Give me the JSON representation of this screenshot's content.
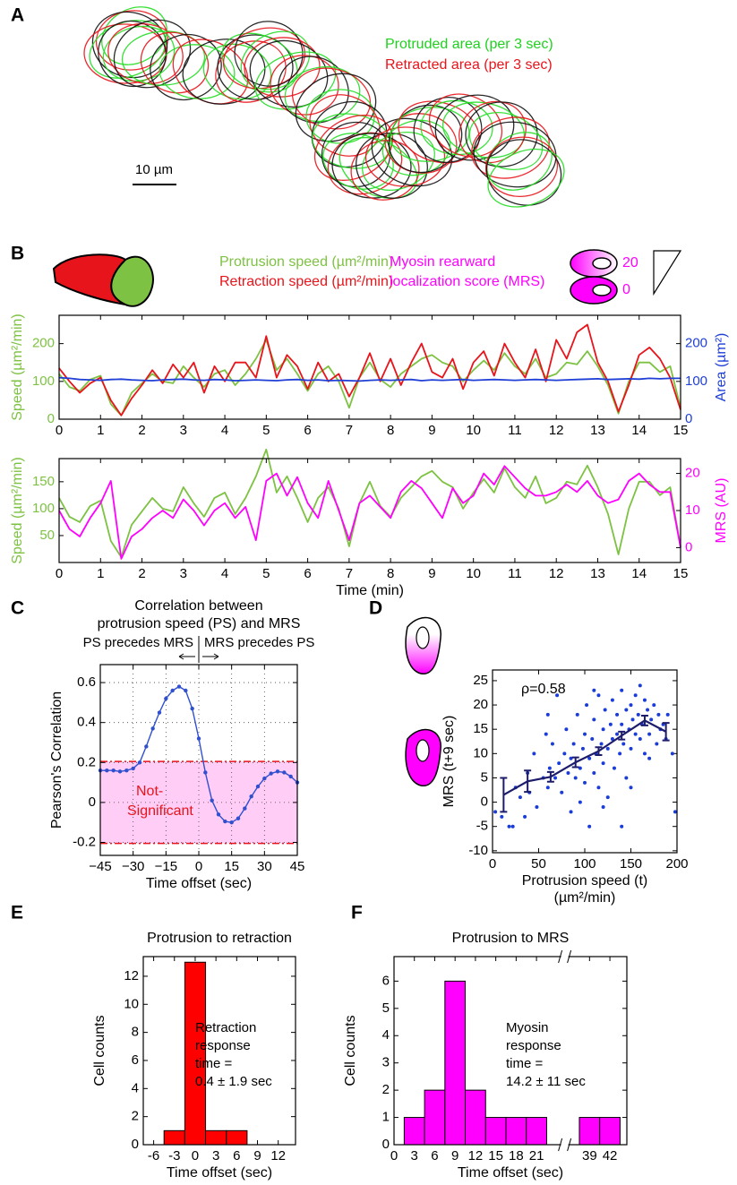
{
  "figure": {
    "panel_labels": [
      "A",
      "B",
      "C",
      "D",
      "E",
      "F"
    ],
    "panel_a": {
      "protruded": "Protruded area (per 3 sec)",
      "retracted": "Retracted area (per 3 sec)",
      "scale_bar": "10 µm"
    },
    "panel_b": {
      "protrusion": "Protrusion speed (µm²/min)",
      "retraction": "Retraction speed (µm²/min)",
      "myosin": [
        "Myosin rearward",
        "localization score (MRS)"
      ],
      "scale_high": "20",
      "scale_low": "0"
    }
  },
  "chart_data": [
    {
      "type": "line",
      "ylabel": "Speed (µm²/min)",
      "y2label": "Area (µm²)",
      "colored_axes": true,
      "x": [
        0,
        0.25,
        0.5,
        0.75,
        1,
        1.25,
        1.5,
        1.75,
        2,
        2.25,
        2.5,
        2.75,
        3,
        3.25,
        3.5,
        3.75,
        4,
        4.25,
        4.5,
        4.75,
        5,
        5.25,
        5.5,
        5.75,
        6,
        6.25,
        6.5,
        6.75,
        7,
        7.25,
        7.5,
        7.75,
        8,
        8.25,
        8.5,
        8.75,
        9,
        9.25,
        9.5,
        9.75,
        10,
        10.25,
        10.5,
        10.75,
        11,
        11.25,
        11.5,
        11.75,
        12,
        12.25,
        12.5,
        12.75,
        13,
        13.25,
        13.5,
        13.75,
        14,
        14.25,
        14.5,
        14.75,
        15
      ],
      "xlim": [
        0,
        15
      ],
      "xticks": [
        0,
        1,
        2,
        3,
        4,
        5,
        6,
        7,
        8,
        9,
        10,
        11,
        12,
        13,
        14,
        15
      ],
      "ylim": [
        0,
        275
      ],
      "yticks": [
        0,
        100,
        200
      ],
      "y2lim": [
        0,
        275
      ],
      "y2ticks": [
        0,
        100,
        200
      ],
      "series": [
        {
          "color": "#7dc242",
          "values": [
            120,
            85,
            75,
            105,
            115,
            40,
            10,
            70,
            95,
            120,
            100,
            95,
            140,
            110,
            85,
            120,
            130,
            90,
            120,
            160,
            210,
            130,
            160,
            120,
            75,
            120,
            140,
            100,
            30,
            110,
            150,
            105,
            85,
            120,
            140,
            160,
            170,
            150,
            140,
            100,
            130,
            155,
            130,
            175,
            140,
            120,
            160,
            110,
            120,
            150,
            145,
            180,
            140,
            90,
            15,
            100,
            150,
            150,
            125,
            140,
            30
          ]
        },
        {
          "color": "#e8141b",
          "values": [
            135,
            100,
            70,
            95,
            110,
            50,
            10,
            55,
            90,
            130,
            95,
            145,
            110,
            150,
            70,
            140,
            100,
            150,
            150,
            110,
            220,
            110,
            170,
            140,
            80,
            150,
            100,
            120,
            60,
            110,
            175,
            100,
            160,
            90,
            150,
            200,
            125,
            110,
            160,
            80,
            150,
            180,
            115,
            200,
            150,
            110,
            185,
            100,
            210,
            160,
            230,
            250,
            150,
            100,
            20,
            90,
            170,
            190,
            160,
            110,
            25
          ]
        },
        {
          "color": "#1f3fd6",
          "axis": "y2",
          "values": [
            110,
            108,
            105,
            104,
            103,
            105,
            106,
            104,
            103,
            102,
            104,
            105,
            106,
            104,
            103,
            105,
            104,
            102,
            103,
            104,
            103,
            102,
            104,
            105,
            103,
            104,
            102,
            103,
            102,
            101,
            103,
            104,
            103,
            104,
            105,
            102,
            104,
            103,
            104,
            105,
            103,
            104,
            105,
            104,
            103,
            104,
            105,
            104,
            103,
            104,
            105,
            106,
            107,
            105,
            106,
            107,
            106,
            108,
            107,
            108,
            108
          ]
        }
      ]
    },
    {
      "type": "line",
      "xlabel": "Time (min)",
      "ylabel": "Speed (µm²/min)",
      "y2label": "MRS (AU)",
      "colored_axes": true,
      "x": [
        0,
        0.25,
        0.5,
        0.75,
        1,
        1.25,
        1.5,
        1.75,
        2,
        2.25,
        2.5,
        2.75,
        3,
        3.25,
        3.5,
        3.75,
        4,
        4.25,
        4.5,
        4.75,
        5,
        5.25,
        5.5,
        5.75,
        6,
        6.25,
        6.5,
        6.75,
        7,
        7.25,
        7.5,
        7.75,
        8,
        8.25,
        8.5,
        8.75,
        9,
        9.25,
        9.5,
        9.75,
        10,
        10.25,
        10.5,
        10.75,
        11,
        11.25,
        11.5,
        11.75,
        12,
        12.25,
        12.5,
        12.75,
        13,
        13.25,
        13.5,
        13.75,
        14,
        14.25,
        14.5,
        14.75,
        15
      ],
      "xlim": [
        0,
        15
      ],
      "xticks": [
        0,
        1,
        2,
        3,
        4,
        5,
        6,
        7,
        8,
        9,
        10,
        11,
        12,
        13,
        14,
        15
      ],
      "ylim": [
        0,
        193
      ],
      "yticks": [
        50,
        100,
        150
      ],
      "y2lim": [
        -4,
        24
      ],
      "y2ticks": [
        0,
        10,
        20
      ],
      "series": [
        {
          "color": "#7dc242",
          "values": [
            120,
            85,
            75,
            105,
            115,
            40,
            10,
            70,
            95,
            120,
            100,
            95,
            140,
            110,
            85,
            120,
            130,
            90,
            120,
            160,
            210,
            130,
            160,
            120,
            75,
            120,
            140,
            100,
            30,
            110,
            150,
            105,
            85,
            120,
            140,
            160,
            170,
            150,
            140,
            100,
            130,
            155,
            130,
            175,
            140,
            120,
            160,
            110,
            120,
            150,
            145,
            180,
            140,
            90,
            15,
            100,
            150,
            150,
            125,
            140,
            30
          ]
        },
        {
          "color": "#ff00ff",
          "axis": "y2",
          "values": [
            10,
            5,
            3,
            8,
            12,
            18,
            -3,
            3,
            5,
            8,
            10,
            8,
            13,
            10,
            6,
            10,
            12,
            8,
            11,
            2,
            18,
            20,
            14,
            19,
            12,
            8,
            18,
            10,
            2,
            12,
            14,
            11,
            8,
            15,
            18,
            16,
            12,
            8,
            16,
            12,
            14,
            20,
            17,
            22,
            19,
            16,
            14,
            14,
            15,
            17,
            15,
            18,
            14,
            12,
            13,
            18,
            20,
            17,
            15,
            15,
            0
          ]
        }
      ]
    },
    {
      "type": "line",
      "title": [
        "Correlation between",
        "protrusion speed (PS) and MRS"
      ],
      "left_note": "PS precedes MRS",
      "right_note": "MRS precedes PS",
      "band_label": [
        "Not-",
        "Significant"
      ],
      "xlabel": "Time offset (sec)",
      "ylabel": "Pearson's Correlation",
      "grid": true,
      "markers": true,
      "band": [
        -0.205,
        0.205
      ],
      "band_color": "#ffcdf6",
      "band_edge_color": "#e8141b",
      "x": [
        -45,
        -42,
        -39,
        -36,
        -33,
        -30,
        -27,
        -24,
        -21,
        -18,
        -15,
        -12,
        -9,
        -6,
        -3,
        0,
        3,
        6,
        9,
        12,
        15,
        18,
        21,
        24,
        27,
        30,
        33,
        36,
        39,
        42,
        45
      ],
      "xlim": [
        -45,
        45
      ],
      "xticks": [
        {
          "value": -45,
          "label": "−45"
        },
        {
          "value": -30,
          "label": "−30"
        },
        {
          "value": -15,
          "label": "−15"
        },
        0,
        15,
        30,
        45
      ],
      "ylim": [
        -0.265,
        0.69
      ],
      "yticks": [
        -0.2,
        0,
        0.2,
        0.4,
        0.6
      ],
      "series": [
        {
          "color": "#3050d0",
          "values": [
            0.16,
            0.16,
            0.16,
            0.155,
            0.16,
            0.17,
            0.2,
            0.28,
            0.37,
            0.45,
            0.52,
            0.56,
            0.58,
            0.56,
            0.47,
            0.32,
            0.15,
            0.01,
            -0.06,
            -0.095,
            -0.1,
            -0.08,
            -0.03,
            0.03,
            0.08,
            0.12,
            0.145,
            0.155,
            0.15,
            0.13,
            0.1
          ]
        }
      ]
    },
    {
      "type": "scatter",
      "annotation": "ρ=0.58",
      "xlabel": [
        "Protrusion speed (t)",
        "(µm²/min)"
      ],
      "ylabel": "MRS (t+9 sec)",
      "xlim": [
        0,
        200
      ],
      "xticks": [
        0,
        50,
        100,
        150,
        200
      ],
      "ylim": [
        -10.4,
        27.2
      ],
      "yticks": [
        -10,
        -5,
        0,
        5,
        10,
        15,
        20,
        25
      ],
      "color": "#1a3cd8",
      "x": [
        10,
        18,
        22,
        25,
        30,
        35,
        38,
        40,
        45,
        48,
        55,
        58,
        60,
        62,
        65,
        68,
        70,
        72,
        75,
        78,
        80,
        82,
        85,
        85,
        88,
        90,
        92,
        95,
        95,
        98,
        100,
        100,
        102,
        105,
        105,
        108,
        110,
        110,
        112,
        115,
        115,
        118,
        120,
        120,
        122,
        125,
        125,
        128,
        130,
        130,
        132,
        135,
        135,
        138,
        140,
        140,
        142,
        145,
        145,
        148,
        150,
        150,
        152,
        155,
        155,
        158,
        160,
        160,
        162,
        165,
        165,
        168,
        170,
        172,
        175,
        178,
        180,
        182,
        185,
        188,
        190,
        195,
        198,
        3,
        140,
        120,
        170,
        150,
        60,
        110
      ],
      "y": [
        -3,
        -5,
        -5,
        3,
        1,
        -3,
        6,
        2,
        10,
        -1,
        5,
        14,
        3,
        7,
        12,
        5,
        22,
        8,
        2,
        10,
        15,
        6,
        -2,
        9,
        12,
        5,
        18,
        7,
        0,
        11,
        14,
        4,
        20,
        9,
        -5,
        13,
        6,
        17,
        10,
        22,
        3,
        12,
        15,
        8,
        19,
        11,
        1,
        16,
        13,
        21,
        7,
        14,
        18,
        10,
        23,
        16,
        12,
        19,
        5,
        15,
        20,
        11,
        17,
        22,
        14,
        18,
        24,
        13,
        16,
        21,
        10,
        19,
        14,
        17,
        20,
        12,
        18,
        15,
        16,
        13,
        18,
        10,
        -2,
        -2,
        -5,
        -1,
        9,
        3,
        18,
        23
      ],
      "mean_line": {
        "color": "#1c1c6b",
        "x": [
          12,
          38,
          63,
          90,
          115,
          140,
          165,
          188
        ],
        "y": [
          1.5,
          4.3,
          5.2,
          8.2,
          10.5,
          13.7,
          16.8,
          14.5
        ],
        "err": [
          3.5,
          2.2,
          1,
          1,
          0.8,
          0.8,
          1,
          1.8
        ]
      }
    },
    {
      "type": "histogram",
      "title": "Protrusion to retraction",
      "annotation": [
        "Retraction",
        "response",
        "time =",
        "0.4 ± 1.9 sec"
      ],
      "xlabel": "Time offset (sec)",
      "ylabel": "Cell counts",
      "color": "#ff0000",
      "bins": [
        -4.5,
        -1.5,
        1.5,
        4.5,
        7.5
      ],
      "counts": [
        1,
        13,
        1,
        1
      ],
      "xlim": [
        -7.5,
        14.5
      ],
      "xticks": [
        -6,
        -3,
        0,
        3,
        6,
        9,
        12
      ],
      "ylim": [
        0,
        13.4
      ],
      "yticks": [
        0,
        2,
        4,
        6,
        8,
        10,
        12
      ]
    },
    {
      "type": "histogram",
      "title": "Protrusion to MRS",
      "annotation": [
        "Myosin",
        "response",
        "time =",
        "14.2 ± 11 sec"
      ],
      "xlabel": "Time offset (sec)",
      "ylabel": "Cell counts",
      "color": "#ff00ff",
      "segments": [
        {
          "bins": [
            1.5,
            4.5,
            7.5,
            10.5,
            13.5,
            16.5,
            19.5,
            22.5
          ],
          "counts": [
            1,
            2,
            6,
            2,
            1,
            1,
            1
          ]
        },
        {
          "bins": [
            37.5,
            40.5,
            43.5
          ],
          "counts": [
            1,
            1
          ]
        }
      ],
      "axis_break": [
        24.5,
        36
      ],
      "xlim": [
        0,
        44.5
      ],
      "xticks": [
        0,
        3,
        6,
        9,
        12,
        15,
        18,
        21,
        39,
        42
      ],
      "ylim": [
        0,
        6.9
      ],
      "yticks": [
        0,
        1,
        2,
        3,
        4,
        5,
        6
      ]
    }
  ]
}
